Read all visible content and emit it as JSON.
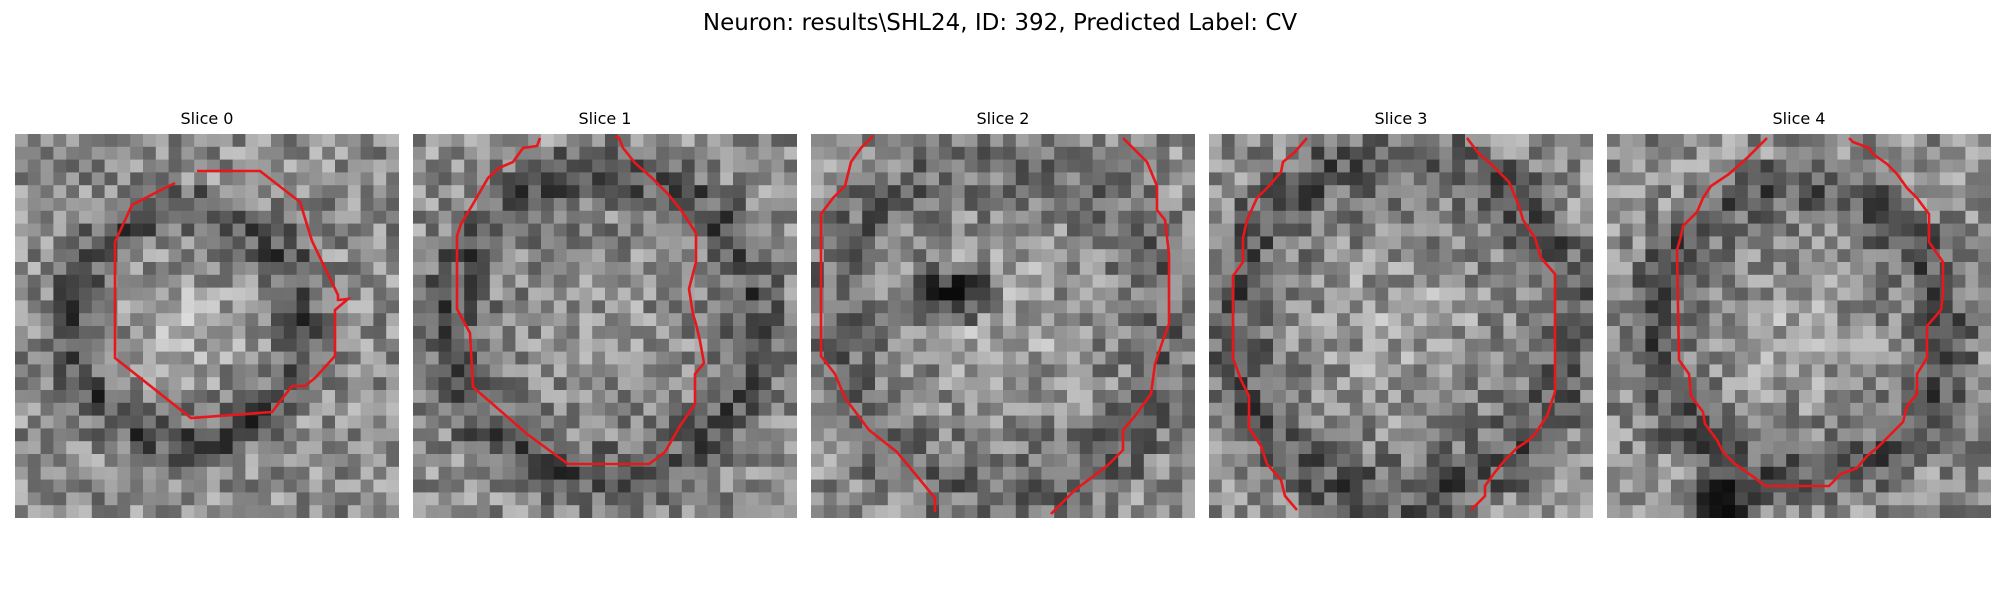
{
  "figure": {
    "title": "Neuron: results\\SHL24, ID: 392, Predicted Label: CV"
  },
  "panels": [
    {
      "title": "Slice 0",
      "contour_color": "#e8171b"
    },
    {
      "title": "Slice 1",
      "contour_color": "#e8171b"
    },
    {
      "title": "Slice 2",
      "contour_color": "#e8171b"
    },
    {
      "title": "Slice 3",
      "contour_color": "#e8171b"
    },
    {
      "title": "Slice 4",
      "contour_color": "#e8171b"
    }
  ]
}
